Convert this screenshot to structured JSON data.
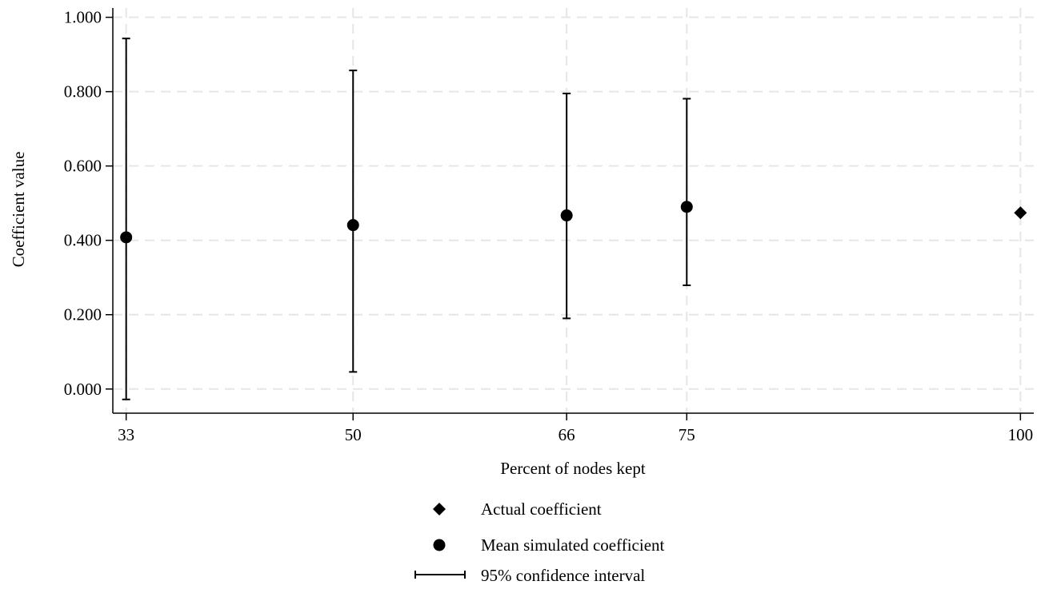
{
  "chart_data": {
    "type": "scatter",
    "xlabel": "Percent of nodes kept",
    "ylabel": "Coefficient value",
    "xlim": [
      32,
      101
    ],
    "ylim": [
      -0.065,
      1.025
    ],
    "x_ticks": [
      33,
      50,
      66,
      75,
      100
    ],
    "y_ticks": [
      0.0,
      0.2,
      0.4,
      0.6,
      0.8,
      1.0
    ],
    "y_tick_labels": [
      "0.000",
      "0.200",
      "0.400",
      "0.600",
      "0.800",
      "1.000"
    ],
    "grid": true,
    "legend_position": "bottom-center",
    "series": [
      {
        "name": "Actual coefficient",
        "marker": "diamond",
        "points": [
          {
            "x": 100,
            "y": 0.474
          }
        ]
      },
      {
        "name": "Mean simulated coefficient",
        "marker": "circle",
        "points": [
          {
            "x": 33,
            "y": 0.408
          },
          {
            "x": 50,
            "y": 0.441
          },
          {
            "x": 66,
            "y": 0.467
          },
          {
            "x": 75,
            "y": 0.49
          }
        ]
      },
      {
        "name": "95% confidence interval",
        "marker": "errorbar",
        "intervals": [
          {
            "x": 33,
            "low": -0.028,
            "high": 0.943
          },
          {
            "x": 50,
            "low": 0.046,
            "high": 0.857
          },
          {
            "x": 66,
            "low": 0.19,
            "high": 0.795
          },
          {
            "x": 75,
            "low": 0.279,
            "high": 0.781
          }
        ]
      }
    ],
    "colors": {
      "marks": "#000000",
      "grid": "#e6e6e6",
      "axis": "#000000"
    }
  }
}
